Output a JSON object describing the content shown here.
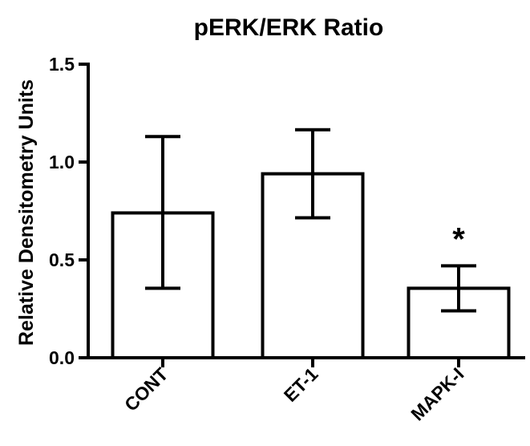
{
  "chart_data": {
    "type": "bar",
    "title": "pERK/ERK Ratio",
    "xlabel": "",
    "ylabel": "Relative Densitometry Units",
    "ylim": [
      0,
      1.5
    ],
    "yticks": [
      0.0,
      0.5,
      1.0,
      1.5
    ],
    "ytick_labels": [
      "0.0",
      "0.5",
      "1.0",
      "1.5"
    ],
    "categories": [
      "CONT",
      "ET-1",
      "MAPK-I"
    ],
    "values": [
      0.74,
      0.94,
      0.355
    ],
    "error_low": [
      0.355,
      0.715,
      0.24
    ],
    "error_high": [
      1.13,
      1.165,
      0.47
    ],
    "annotations": [
      "",
      "",
      "*"
    ],
    "bar_color": "#ffffff",
    "edge_color": "#000000",
    "grid": false,
    "legend": "none"
  }
}
